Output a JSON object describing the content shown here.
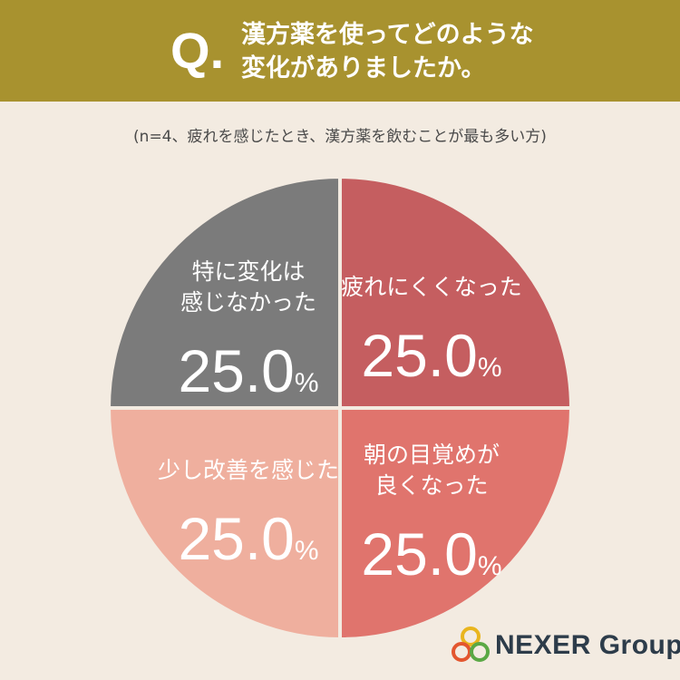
{
  "header": {
    "q_mark": "Q",
    "q_dot": ".",
    "question_lines": [
      "漢方薬を使ってどのような",
      "変化がありましたか。"
    ]
  },
  "subtitle": "(n=4、疲れを感じたとき、漢方薬を飲むことが最も多い方)",
  "chart_data": {
    "type": "pie",
    "slices": [
      {
        "label_lines": [
          "疲れにくくなった"
        ],
        "value": 25.0,
        "value_text": "25.0",
        "color": "#c55e60"
      },
      {
        "label_lines": [
          "朝の目覚めが",
          "良くなった"
        ],
        "value": 25.0,
        "value_text": "25.0",
        "color": "#e0746d"
      },
      {
        "label_lines": [
          "少し改善を感じた"
        ],
        "value": 25.0,
        "value_text": "25.0",
        "color": "#efaf9e"
      },
      {
        "label_lines": [
          "特に変化は",
          "感じなかった"
        ],
        "value": 25.0,
        "value_text": "25.0",
        "color": "#7b7b7b"
      }
    ],
    "unit": "%",
    "start": "12 o'clock",
    "direction": "clockwise"
  },
  "logo": {
    "text": "NEXER Group",
    "icon": "nexer-rings-logo",
    "colors": [
      "#e9b51e",
      "#e3562f",
      "#5aa845"
    ]
  }
}
